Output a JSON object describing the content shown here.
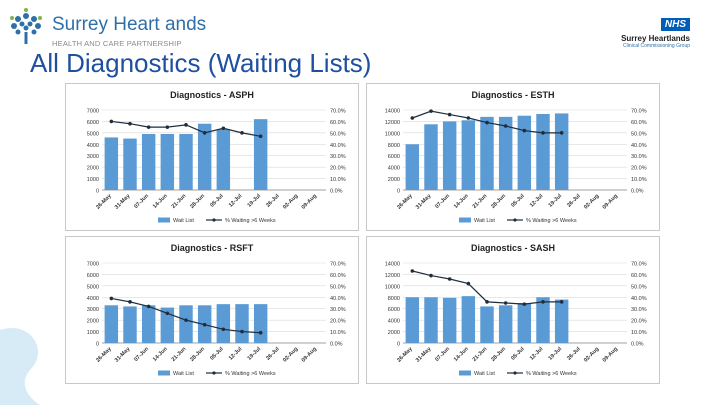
{
  "header": {
    "logo_title": "Surrey Heart ands",
    "logo_subtitle": "HEALTH AND CARE PARTNERSHIP",
    "nhs_badge": "NHS",
    "nhs_name": "Surrey Heartlands",
    "nhs_subtitle": "Clinical Commissioning Group",
    "slide_title": "All Diagnostics (Waiting Lists)"
  },
  "colors": {
    "bar": "#5b9bd5",
    "line": "#1f2d3d",
    "title": "#1f4fa0",
    "wave": "#cfe6f3"
  },
  "chart_data": [
    {
      "type": "bar",
      "title": "Diagnostics - ASPH",
      "categories": [
        "26-May",
        "31-May",
        "07-Jun",
        "14-Jun",
        "21-Jun",
        "28-Jun",
        "05-Jul",
        "12-Jul",
        "19-Jul",
        "26-Jul",
        "02-Aug",
        "09-Aug"
      ],
      "series": [
        {
          "name": "Wait List",
          "kind": "bar",
          "axis": "left",
          "values": [
            4600,
            4500,
            4900,
            4900,
            4900,
            5800,
            5300,
            null,
            6200,
            null,
            null,
            null
          ]
        },
        {
          "name": "% Waiting >6 Weeks",
          "kind": "line",
          "axis": "right",
          "values": [
            60,
            58,
            55,
            55,
            57,
            50,
            54,
            50,
            47,
            null,
            null,
            null
          ]
        }
      ],
      "ylim": [
        0,
        7000
      ],
      "yticks": [
        "7000",
        "6000",
        "5000",
        "4000",
        "3000",
        "2000",
        "1000",
        "0"
      ],
      "y2lim": [
        0,
        70
      ],
      "y2ticks": [
        "70.0%",
        "60.0%",
        "50.0%",
        "40.0%",
        "30.0%",
        "20.0%",
        "10.0%",
        "0.0%"
      ],
      "legend": [
        "Wait List",
        "% Waiting >6 Weeks"
      ]
    },
    {
      "type": "bar",
      "title": "Diagnostics - ESTH",
      "categories": [
        "26-May",
        "31-May",
        "07-Jun",
        "14-Jun",
        "21-Jun",
        "28-Jun",
        "05-Jul",
        "12-Jul",
        "19-Jul",
        "26-Jul",
        "02-Aug",
        "09-Aug"
      ],
      "series": [
        {
          "name": "Wait List",
          "kind": "bar",
          "axis": "left",
          "values": [
            8000,
            11500,
            12000,
            12200,
            12800,
            12800,
            13000,
            13300,
            13400,
            null,
            null,
            null
          ]
        },
        {
          "name": "% Waiting >6 Weeks",
          "kind": "line",
          "axis": "right",
          "values": [
            63,
            69,
            66,
            63,
            59,
            56,
            52,
            50,
            50,
            null,
            null,
            null
          ]
        }
      ],
      "ylim": [
        0,
        14000
      ],
      "yticks": [
        "14000",
        "12000",
        "10000",
        "8000",
        "6000",
        "4000",
        "2000",
        "0"
      ],
      "y2lim": [
        0,
        70
      ],
      "y2ticks": [
        "70.0%",
        "60.0%",
        "50.0%",
        "40.0%",
        "30.0%",
        "20.0%",
        "10.0%",
        "0.0%"
      ],
      "legend": [
        "Wait List",
        "% Waiting >6 Weeks"
      ]
    },
    {
      "type": "bar",
      "title": "Diagnostics - RSFT",
      "categories": [
        "26-May",
        "31-May",
        "07-Jun",
        "14-Jun",
        "21-Jun",
        "28-Jun",
        "05-Jul",
        "12-Jul",
        "19-Jul",
        "26-Jul",
        "02-Aug",
        "09-Aug"
      ],
      "series": [
        {
          "name": "Wait List",
          "kind": "bar",
          "axis": "left",
          "values": [
            3300,
            3200,
            3300,
            3100,
            3300,
            3300,
            3400,
            3400,
            3400,
            null,
            null,
            null
          ]
        },
        {
          "name": "% Waiting >6 Weeks",
          "kind": "line",
          "axis": "right",
          "values": [
            39,
            36,
            32,
            26,
            20,
            16,
            12,
            10,
            9,
            null,
            null,
            null
          ]
        }
      ],
      "ylim": [
        0,
        7000
      ],
      "yticks": [
        "7000",
        "6000",
        "5000",
        "4000",
        "3000",
        "2000",
        "1000",
        "0"
      ],
      "y2lim": [
        0,
        70
      ],
      "y2ticks": [
        "70.0%",
        "60.0%",
        "50.0%",
        "40.0%",
        "30.0%",
        "20.0%",
        "10.0%",
        "0.0%"
      ],
      "legend": [
        "Wait List",
        "% Waiting >6 Weeks"
      ]
    },
    {
      "type": "bar",
      "title": "Diagnostics - SASH",
      "categories": [
        "26-May",
        "31-May",
        "07-Jun",
        "14-Jun",
        "21-Jun",
        "28-Jun",
        "05-Jul",
        "12-Jul",
        "19-Jul",
        "26-Jul",
        "02-Aug",
        "09-Aug"
      ],
      "series": [
        {
          "name": "Wait List",
          "kind": "bar",
          "axis": "left",
          "values": [
            8000,
            8000,
            7900,
            8200,
            6400,
            6600,
            7000,
            8000,
            7600,
            null,
            null,
            null
          ]
        },
        {
          "name": "% Waiting >6 Weeks",
          "kind": "line",
          "axis": "right",
          "values": [
            63,
            59,
            56,
            52,
            36,
            35,
            34,
            36,
            36,
            null,
            null,
            null
          ]
        }
      ],
      "ylim": [
        0,
        14000
      ],
      "yticks": [
        "14000",
        "12000",
        "10000",
        "8000",
        "6000",
        "4000",
        "2000",
        "0"
      ],
      "y2lim": [
        0,
        70
      ],
      "y2ticks": [
        "70.0%",
        "60.0%",
        "50.0%",
        "40.0%",
        "30.0%",
        "20.0%",
        "10.0%",
        "0.0%"
      ],
      "legend": [
        "Wait List",
        "% Waiting >6 Weeks"
      ]
    }
  ]
}
